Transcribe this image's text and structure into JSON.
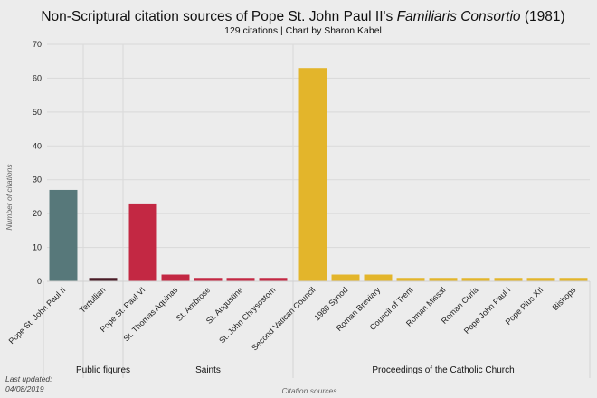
{
  "chart_data": {
    "type": "bar",
    "title_prefix": "Non-Scriptural citation sources of Pope St. John Paul II's ",
    "title_italic": "Familiaris Consortio",
    "title_suffix": " (1981)",
    "subtitle": "129 citations | Chart by Sharon Kabel",
    "xlabel": "Citation sources",
    "ylabel": "Number of citations",
    "ylim": [
      0,
      70
    ],
    "yticks": [
      0,
      10,
      20,
      30,
      40,
      50,
      60,
      70
    ],
    "grid": true,
    "footer_line1": "Last updated:",
    "footer_line2": "04/08/2019",
    "categories": [
      "Pope St. John Paul II",
      "Tertullian",
      "Pope St. Paul VI",
      "St. Thomas Aquinas",
      "St. Ambrose",
      "St. Augustine",
      "St. John Chrysostom",
      "Second Vatican Council",
      "1980 Synod",
      "Roman Breviary",
      "Council of Trent",
      "Roman Missal",
      "Roman Curia",
      "Pope John Paul I",
      "Pope Pius XII",
      "Bishops"
    ],
    "values": [
      27,
      1,
      23,
      2,
      1,
      1,
      1,
      63,
      2,
      2,
      1,
      1,
      1,
      1,
      1,
      1
    ],
    "groups": [
      {
        "name": "",
        "color": "#57787a",
        "count": 1
      },
      {
        "name": "Public figures",
        "color": "#4a1c27",
        "count": 1
      },
      {
        "name": "Saints",
        "color": "#c32843",
        "count": 5
      },
      {
        "name": "Proceedings of the Catholic Church",
        "color": "#e3b52b",
        "count": 9
      }
    ]
  }
}
